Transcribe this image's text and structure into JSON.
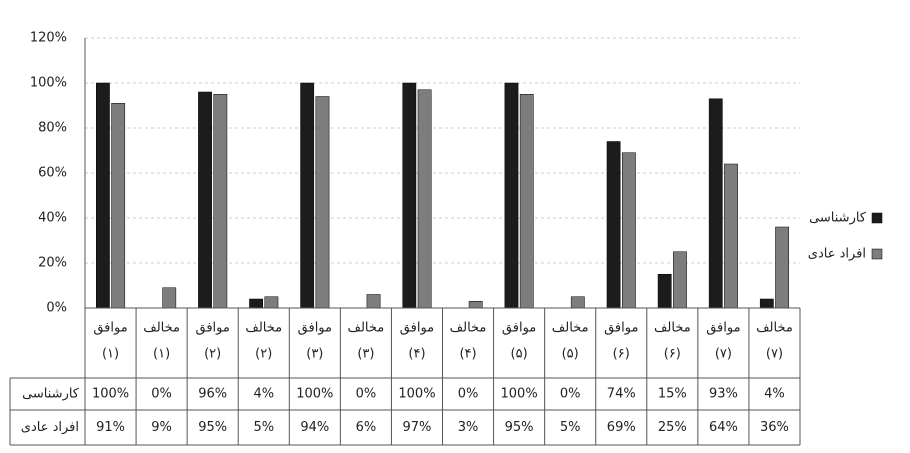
{
  "chart_data": {
    "type": "bar",
    "categories": [
      [
        "موافق",
        "(۱)"
      ],
      [
        "مخالف",
        "(۱)"
      ],
      [
        "موافق",
        "(۲)"
      ],
      [
        "مخالف",
        "(۲)"
      ],
      [
        "موافق",
        "(۳)"
      ],
      [
        "مخالف",
        "(۳)"
      ],
      [
        "موافق",
        "(۴)"
      ],
      [
        "مخالف",
        "(۴)"
      ],
      [
        "موافق",
        "(۵)"
      ],
      [
        "مخالف",
        "(۵)"
      ],
      [
        "موافق",
        "(۶)"
      ],
      [
        "مخالف",
        "(۶)"
      ],
      [
        "موافق",
        "(۷)"
      ],
      [
        "مخالف",
        "(۷)"
      ]
    ],
    "series": [
      {
        "name": "کارشناسی",
        "color": "#1c1c1c",
        "values": [
          100,
          0,
          96,
          4,
          100,
          0,
          100,
          0,
          100,
          0,
          74,
          15,
          93,
          4
        ],
        "value_labels": [
          "100%",
          "0%",
          "96%",
          "4%",
          "100%",
          "0%",
          "100%",
          "0%",
          "100%",
          "0%",
          "74%",
          "15%",
          "93%",
          "4%"
        ]
      },
      {
        "name": "افراد عادی",
        "color": "#7d7d7d",
        "values": [
          91,
          9,
          95,
          5,
          94,
          6,
          97,
          3,
          95,
          5,
          69,
          25,
          64,
          36
        ],
        "value_labels": [
          "91%",
          "9%",
          "95%",
          "5%",
          "94%",
          "6%",
          "97%",
          "3%",
          "95%",
          "5%",
          "69%",
          "25%",
          "64%",
          "36%"
        ]
      }
    ],
    "ylim": [
      0,
      120
    ],
    "yticks": [
      {
        "value": 0,
        "label": "0%"
      },
      {
        "value": 20,
        "label": "20%"
      },
      {
        "value": 40,
        "label": "40%"
      },
      {
        "value": 60,
        "label": "60%"
      },
      {
        "value": 80,
        "label": "80%"
      },
      {
        "value": 100,
        "label": "100%"
      },
      {
        "value": 120,
        "label": "120%"
      }
    ],
    "grid": true,
    "legend": "right"
  }
}
